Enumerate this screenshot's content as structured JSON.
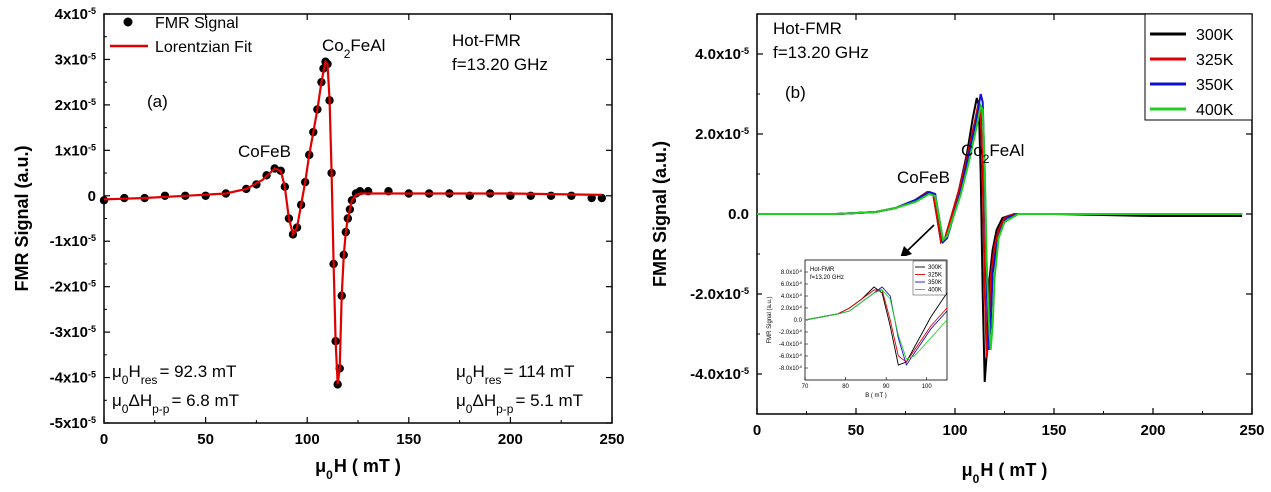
{
  "chart_data": [
    {
      "id": "a",
      "type": "scatter",
      "panel_label": "(a)",
      "xlabel": {
        "main": "μ",
        "sub": "0",
        "rest": "H ( mT )"
      },
      "ylabel": "FMR Signal (a.u.)",
      "xlim": [
        0,
        250
      ],
      "ylim": [
        -5e-05,
        4e-05
      ],
      "x_ticks": [
        0,
        50,
        100,
        150,
        200,
        250
      ],
      "y_ticks": [
        {
          "value": 4e-05,
          "base": "4x10",
          "exp": "-5"
        },
        {
          "value": 3e-05,
          "base": "3x10",
          "exp": "-5"
        },
        {
          "value": 2e-05,
          "base": "2x10",
          "exp": "-5"
        },
        {
          "value": 1e-05,
          "base": "1x10",
          "exp": "-5"
        },
        {
          "value": 0,
          "base": "0",
          "exp": ""
        },
        {
          "value": -1e-05,
          "base": "-1x10",
          "exp": "-5"
        },
        {
          "value": -2e-05,
          "base": "-2x10",
          "exp": "-5"
        },
        {
          "value": -3e-05,
          "base": "-3x10",
          "exp": "-5"
        },
        {
          "value": -4e-05,
          "base": "-4x10",
          "exp": "-5"
        },
        {
          "value": -5e-05,
          "base": "-5x10",
          "exp": "-5"
        }
      ],
      "legend": {
        "position": "top-left",
        "entries": [
          {
            "name": "FMR Signal",
            "marker": "circle",
            "color": "#000000"
          },
          {
            "name": "Lorentzian Fit",
            "marker": "line",
            "color": "#e00000"
          }
        ]
      },
      "text": {
        "condition_1": "Hot-FMR",
        "condition_2": "f=13.20 GHz",
        "peak_cofeb": "CoFeB",
        "peak_co2feal": {
          "a": "Co",
          "sub": "2",
          "b": "FeAl"
        },
        "hres_cofeb": {
          "pre": "μ",
          "sub0": "0",
          "mid": "H",
          "sub1": "res",
          "post": "= 92.3 mT"
        },
        "dh_cofeb": {
          "pre": "μ",
          "sub0": "0",
          "mid": "ΔH",
          "sub1": "p-p",
          "post": "= 6.8 mT"
        },
        "hres_co2feal": {
          "pre": "μ",
          "sub0": "0",
          "mid": "H",
          "sub1": "res",
          "post": "= 114 mT"
        },
        "dh_co2feal": {
          "pre": "μ",
          "sub0": "0",
          "mid": "ΔH",
          "sub1": "p-p",
          "post": "= 5.1 mT"
        }
      },
      "series": [
        {
          "name": "FMR Signal",
          "color": "#000000",
          "x": [
            0,
            10,
            20,
            30,
            40,
            50,
            60,
            70,
            75,
            80,
            84,
            87,
            89,
            91,
            93,
            95,
            97,
            99,
            101,
            103,
            105,
            107,
            108,
            109,
            110,
            111,
            112,
            113,
            114,
            115,
            116,
            117,
            118,
            119,
            120,
            121,
            122,
            124,
            126,
            130,
            140,
            150,
            160,
            170,
            180,
            190,
            200,
            210,
            220,
            230,
            240,
            245
          ],
          "y": [
            -1e-06,
            -5e-07,
            -5e-07,
            0,
            0,
            0,
            5e-07,
            1.5e-06,
            2.5e-06,
            4.5e-06,
            6e-06,
            5.5e-06,
            2e-06,
            -5e-06,
            -8.5e-06,
            -7e-06,
            -2e-06,
            3e-06,
            9e-06,
            1.4e-05,
            1.9e-05,
            2.5e-05,
            2.8e-05,
            2.95e-05,
            2.9e-05,
            2.1e-05,
            5e-06,
            -1.5e-05,
            -3.2e-05,
            -4.15e-05,
            -3.8e-05,
            -2.2e-05,
            -1.3e-05,
            -8e-06,
            -5e-06,
            -3e-06,
            -1e-06,
            5e-07,
            1e-06,
            1e-06,
            1e-06,
            5e-07,
            5e-07,
            5e-07,
            0,
            5e-07,
            0,
            0,
            0,
            0,
            -5e-07,
            -5e-07
          ]
        },
        {
          "name": "Lorentzian Fit",
          "color": "#e00000",
          "x": [
            0,
            20,
            40,
            60,
            70,
            78,
            84,
            87,
            89,
            91,
            93,
            95,
            97,
            99,
            101,
            103,
            105,
            107,
            109,
            110,
            111,
            112,
            113,
            114,
            115,
            116,
            117,
            118,
            119,
            120,
            121,
            122,
            124,
            126,
            130,
            150,
            200,
            245
          ],
          "y": [
            -8e-07,
            -5e-07,
            0,
            5e-07,
            1.5e-06,
            3.5e-06,
            6e-06,
            5.5e-06,
            2e-06,
            -5e-06,
            -8.5e-06,
            -7e-06,
            -2e-06,
            3e-06,
            9e-06,
            1.4e-05,
            1.9e-05,
            2.5e-05,
            2.95e-05,
            2.9e-05,
            2.1e-05,
            5e-06,
            -1.5e-05,
            -3.2e-05,
            -4.15e-05,
            -3.8e-05,
            -2.2e-05,
            -1.3e-05,
            -8e-06,
            -5e-06,
            -3e-06,
            -1e-06,
            2e-07,
            5e-07,
            5e-07,
            5e-07,
            5e-07,
            2e-07
          ]
        }
      ]
    },
    {
      "id": "b",
      "type": "line",
      "panel_label": "(b)",
      "xlabel": {
        "main": "μ",
        "sub": "0",
        "rest": "H ( mT )"
      },
      "ylabel": "FMR Signal (a.u.)",
      "xlim": [
        0,
        250
      ],
      "ylim": [
        -5e-05,
        5e-05
      ],
      "x_ticks": [
        0,
        50,
        100,
        150,
        200,
        250
      ],
      "y_ticks": [
        {
          "value": 4e-05,
          "base": "4.0x10",
          "exp": "-5"
        },
        {
          "value": 2e-05,
          "base": "2.0x10",
          "exp": "-5"
        },
        {
          "value": 0,
          "base": "0.0",
          "exp": ""
        },
        {
          "value": -2e-05,
          "base": "-2.0x10",
          "exp": "-5"
        },
        {
          "value": -4e-05,
          "base": "-4.0x10",
          "exp": "-5"
        }
      ],
      "legend": {
        "position": "top-right",
        "entries": [
          {
            "name": "300K",
            "color": "#000000"
          },
          {
            "name": "325K",
            "color": "#e00000"
          },
          {
            "name": "350K",
            "color": "#1010d0"
          },
          {
            "name": "400K",
            "color": "#20d020"
          }
        ]
      },
      "text": {
        "condition_1": "Hot-FMR",
        "condition_2": "f=13.20 GHz",
        "peak_cofeb": "CoFeB",
        "peak_co2feal": {
          "a": "Co",
          "sub": "2",
          "b": "FeAl"
        }
      },
      "series": [
        {
          "name": "300K",
          "color": "#000000",
          "x": [
            0,
            20,
            40,
            60,
            70,
            80,
            86,
            89,
            91,
            93,
            95,
            98,
            102,
            106,
            109,
            111,
            112,
            113,
            114,
            115,
            116,
            117,
            119,
            121,
            124,
            130,
            150,
            200,
            245
          ],
          "y": [
            0,
            0,
            0,
            5e-07,
            1.5e-06,
            3.5e-06,
            5.5e-06,
            5e-06,
            -1e-06,
            -7e-06,
            -6e-06,
            -1e-06,
            6e-06,
            1.5e-05,
            2.4e-05,
            2.9e-05,
            2.7e-05,
            1e-05,
            -2e-05,
            -4.2e-05,
            -3.5e-05,
            -1.8e-05,
            -9e-06,
            -4e-06,
            -1e-06,
            0,
            0,
            -5e-07,
            -5e-07
          ]
        },
        {
          "name": "325K",
          "color": "#e00000",
          "x": [
            0,
            20,
            40,
            60,
            70,
            80,
            86,
            89,
            91,
            93,
            95,
            98,
            102,
            106,
            110,
            112,
            113,
            114,
            115,
            116,
            117,
            118,
            120,
            122,
            125,
            130,
            150,
            200,
            245
          ],
          "y": [
            0,
            0,
            0,
            5e-07,
            1.5e-06,
            3.5e-06,
            5.5e-06,
            5e-06,
            -1e-06,
            -7e-06,
            -6e-06,
            -1e-06,
            6e-06,
            1.4e-05,
            2.3e-05,
            2.8e-05,
            2.6e-05,
            1e-05,
            -1.8e-05,
            -3.6e-05,
            -3e-05,
            -1.6e-05,
            -8e-06,
            -4e-06,
            -1e-06,
            0,
            0,
            0,
            0
          ]
        },
        {
          "name": "350K",
          "color": "#1010d0",
          "x": [
            0,
            20,
            40,
            60,
            70,
            80,
            87,
            90,
            92,
            94,
            96,
            99,
            103,
            107,
            111,
            113,
            114,
            115,
            116,
            117,
            118,
            119,
            121,
            123,
            126,
            132,
            150,
            200,
            245
          ],
          "y": [
            0,
            0,
            0,
            5e-07,
            1.5e-06,
            3.5e-06,
            5.5e-06,
            5e-06,
            -1e-06,
            -7e-06,
            -6e-06,
            -1e-06,
            6e-06,
            1.5e-05,
            2.4e-05,
            3e-05,
            2.8e-05,
            1e-05,
            -1.8e-05,
            -3.4e-05,
            -2.8e-05,
            -1.5e-05,
            -8e-06,
            -4e-06,
            -1e-06,
            0,
            0,
            0,
            0
          ]
        },
        {
          "name": "400K",
          "color": "#20d020",
          "x": [
            0,
            20,
            40,
            60,
            70,
            80,
            87,
            90,
            92,
            94,
            96,
            99,
            103,
            107,
            111,
            113,
            114,
            115,
            116,
            117,
            118,
            119,
            120,
            122,
            125,
            132,
            150,
            200,
            245
          ],
          "y": [
            0,
            0,
            0,
            5e-07,
            1.5e-06,
            3e-06,
            5e-06,
            4.5e-06,
            -1e-06,
            -6.5e-06,
            -5.5e-06,
            -1e-06,
            5e-06,
            1.3e-05,
            2.2e-05,
            2.7e-05,
            2.6e-05,
            1.2e-05,
            -1.2e-05,
            -2.6e-05,
            -3.4e-05,
            -2.8e-05,
            -1.6e-05,
            -6e-06,
            -2e-06,
            0,
            0,
            0,
            0
          ]
        }
      ],
      "inset": {
        "xlabel": "B ( mT )",
        "ylabel": "FMR Signal (a.u.)",
        "title_1": "Hot-FMR",
        "title_2": "f=13.20 GHz",
        "xlim": [
          70,
          105
        ],
        "ylim": [
          -1e-05,
          1e-05
        ],
        "x_ticks": [
          70,
          80,
          90,
          100
        ],
        "y_ticks": [
          {
            "value": 8e-06,
            "base": "8.0x10",
            "exp": "-6"
          },
          {
            "value": 6e-06,
            "base": "6.0x10",
            "exp": "-6"
          },
          {
            "value": 4e-06,
            "base": "4.0x10",
            "exp": "-6"
          },
          {
            "value": 2e-06,
            "base": "2.0x10",
            "exp": "-6"
          },
          {
            "value": 0,
            "base": "0.0",
            "exp": ""
          },
          {
            "value": -2e-06,
            "base": "-2.0x10",
            "exp": "-6"
          },
          {
            "value": -4e-06,
            "base": "-4.0x10",
            "exp": "-6"
          },
          {
            "value": -6e-06,
            "base": "-6.0x10",
            "exp": "-6"
          },
          {
            "value": -8e-06,
            "base": "-8.0x10",
            "exp": "-6"
          }
        ],
        "legend": [
          "300K",
          "325K",
          "350K",
          "400K"
        ],
        "series": [
          {
            "name": "300K",
            "color": "#000000",
            "x": [
              70,
              74,
              78,
              81,
              84,
              87,
              89,
              91,
              93,
              95,
              97,
              99,
              101,
              103,
              105
            ],
            "y": [
              0,
              5e-07,
              1e-06,
              2e-06,
              3.5e-06,
              5.5e-06,
              4.5e-06,
              -1e-06,
              -7.5e-06,
              -7e-06,
              -4.5e-06,
              -2e-06,
              5e-07,
              2.5e-06,
              4.5e-06
            ]
          },
          {
            "name": "325K",
            "color": "#e00000",
            "x": [
              70,
              74,
              78,
              81,
              84,
              87,
              89,
              91,
              93,
              95,
              97,
              99,
              101,
              103,
              105
            ],
            "y": [
              0,
              5e-07,
              1e-06,
              2e-06,
              3.5e-06,
              5e-06,
              5e-06,
              0,
              -6e-06,
              -7e-06,
              -5e-06,
              -3e-06,
              -1e-06,
              5e-07,
              2e-06
            ]
          },
          {
            "name": "350K",
            "color": "#1010d0",
            "x": [
              70,
              74,
              78,
              81,
              84,
              87,
              89,
              91,
              93,
              95,
              97,
              99,
              101,
              103,
              105
            ],
            "y": [
              0,
              5e-07,
              1e-06,
              1.5e-06,
              3e-06,
              4.5e-06,
              5.5e-06,
              4e-06,
              -3e-06,
              -7.5e-06,
              -5.5e-06,
              -3.5e-06,
              -1.5e-06,
              0,
              1.5e-06
            ]
          },
          {
            "name": "400K",
            "color": "#20d020",
            "x": [
              70,
              74,
              78,
              81,
              84,
              87,
              89,
              91,
              93,
              95,
              97,
              99,
              101,
              103,
              105
            ],
            "y": [
              0,
              5e-07,
              1e-06,
              1.5e-06,
              3e-06,
              4.5e-06,
              5e-06,
              3.5e-06,
              -2.5e-06,
              -6.5e-06,
              -6e-06,
              -4.5e-06,
              -3e-06,
              -1.5e-06,
              0
            ]
          }
        ]
      }
    }
  ]
}
